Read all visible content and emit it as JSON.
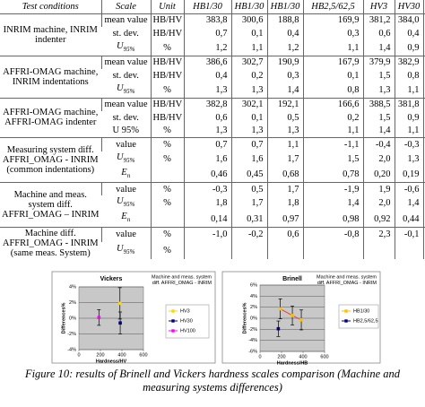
{
  "table": {
    "header": [
      "Test conditions",
      "Scale",
      "Unit",
      "HB1/30",
      "HB1/30",
      "HB1/30",
      "HB2,5/62,5",
      "HV3",
      "HV30",
      "HV100"
    ],
    "groups": [
      {
        "label": "INRIM machine,  INRIM indenter",
        "rows": [
          {
            "scale": "mean value",
            "unit": "HB/HV",
            "values": [
              "383,8",
              "300,6",
              "188,8",
              "169,9",
              "381,2",
              "384,0",
              "185,9"
            ]
          },
          {
            "scale": "st. dev.",
            "unit": "HB/HV",
            "values": [
              "0,7",
              "0,1",
              "0,4",
              "0,3",
              "0,6",
              "0,4",
              "0,2"
            ]
          },
          {
            "scale": {
              "text": "U",
              "sub": "95%"
            },
            "unit": "%",
            "values": [
              "1,2",
              "1,1",
              "1,2",
              "1,1",
              "1,4",
              "0,9",
              "0,7"
            ]
          }
        ]
      },
      {
        "label": "AFFRI-OMAG machine, INRIM indentations",
        "rows": [
          {
            "scale": "mean value",
            "unit": "HB/HV",
            "values": [
              "386,6",
              "302,7",
              "190,9",
              "167,9",
              "379,9",
              "382,9",
              "185,7"
            ]
          },
          {
            "scale": "st. dev.",
            "unit": "HB/HV",
            "values": [
              "0,4",
              "0,2",
              "0,3",
              "0,1",
              "1,5",
              "0,8",
              "0,1"
            ]
          },
          {
            "scale": {
              "text": "U",
              "sub": "95%"
            },
            "unit": "%",
            "values": [
              "1,3",
              "1,3",
              "1,4",
              "0,8",
              "1,3",
              "1,1",
              "1,1"
            ]
          }
        ]
      },
      {
        "label": "AFFRI-OMAG machine, AFFRI-OMAG indenter",
        "rows": [
          {
            "scale": "mean value",
            "unit": "HB/HV",
            "values": [
              "382,8",
              "302,1",
              "192,1",
              "166,6",
              "388,5",
              "381,8",
              "186,0"
            ]
          },
          {
            "scale": "st. dev.",
            "unit": "HB/HV",
            "values": [
              "0,6",
              "0,1",
              "0,5",
              "0,2",
              "1,5",
              "0,9",
              "0,1"
            ]
          },
          {
            "scale": "U 95%",
            "unit": "%",
            "values": [
              "1,3",
              "1,3",
              "1,3",
              "1,1",
              "1,4",
              "1,1",
              "0,7"
            ]
          }
        ]
      },
      {
        "label": "Measuring system diff. AFFRI_OMAG - INRIM (common indentations)",
        "rows": [
          {
            "scale": "value",
            "unit": "%",
            "values": [
              "0,7",
              "0,7",
              "1,1",
              "-1,1",
              "-0,4",
              "-0,3",
              "-0,1"
            ]
          },
          {
            "scale": {
              "text": "U",
              "sub": "95%"
            },
            "unit": "%",
            "values": [
              "1,6",
              "1,6",
              "1,7",
              "1,5",
              "2,0",
              "1,3",
              "0,9"
            ]
          },
          {
            "scale": {
              "text": "E",
              "sub": "n"
            },
            "unit": null,
            "values": [
              "0,46",
              "0,45",
              "0,68",
              "0,78",
              "0,20",
              "0,19",
              "0,06"
            ]
          }
        ]
      },
      {
        "label": "Machine and meas. system diff. AFFRI_OMAG – INRIM",
        "rows": [
          {
            "scale": "value",
            "unit": "%",
            "values": [
              "-0,3",
              "0,5",
              "1,7",
              "-1,9",
              "1,9",
              "-0,6",
              "0,1"
            ]
          },
          {
            "scale": {
              "text": "U",
              "sub": "95%"
            },
            "unit": "%",
            "values": [
              "1,8",
              "1,7",
              "1,8",
              "1,4",
              "2,0",
              "1,4",
              "1,0"
            ]
          },
          {
            "scale": {
              "text": "E",
              "sub": "n"
            },
            "unit": null,
            "values": [
              "0,14",
              "0,31",
              "0,97",
              "0,98",
              "0,92",
              "0,44",
              "0,06"
            ]
          }
        ]
      },
      {
        "label": "Machine diff. AFFRI_OMAG - INRIM (same meas. System)",
        "rows": [
          {
            "scale": "value",
            "unit": "%",
            "values": [
              "-1,0",
              "-0,2",
              "0,6",
              "-0,8",
              "2,3",
              "-0,1",
              "0,2"
            ]
          },
          {
            "scale": {
              "text": "U",
              "sub": "95%"
            },
            "unit": "%"
          }
        ]
      }
    ]
  },
  "figure": {
    "charts": [
      {
        "type": "scatter",
        "title": "Vickers",
        "annotation": [
          "Machine and meas. system",
          "diff. AFFRI_OMAG - INRIM"
        ],
        "x_label": "Hardness/HV",
        "y_label": "Differences%",
        "xlim": [
          0,
          600
        ],
        "xticks": [
          0,
          200,
          400,
          600
        ],
        "ylim": [
          -4,
          4
        ],
        "yticks": [
          {
            "value": -4,
            "label": "-4%"
          },
          {
            "value": -2,
            "label": "-2%"
          },
          {
            "value": 0,
            "label": "0%"
          },
          {
            "value": 2,
            "label": "2%"
          },
          {
            "value": 4,
            "label": "4%"
          }
        ],
        "grid": true,
        "series": [
          {
            "name": "HV3",
            "color": "#ffd700",
            "x": [
              381.2
            ],
            "values": [
              1.9
            ],
            "errors": [
              2.0
            ]
          },
          {
            "name": "HV30",
            "color": "#000080",
            "x": [
              384.0
            ],
            "values": [
              -0.6
            ],
            "errors": [
              1.4
            ]
          },
          {
            "name": "HV100",
            "color": "#ff00ff",
            "x": [
              185.9
            ],
            "values": [
              0.1
            ],
            "errors": [
              1.0
            ]
          }
        ]
      },
      {
        "type": "scatter",
        "title": "Brinell",
        "annotation": [
          "Machine and meas. system",
          "diff. AFFRI_OMAG - INRIM"
        ],
        "x_label": "Hardness/HB",
        "y_label": "Differences%",
        "xlim": [
          0,
          600
        ],
        "xticks": [
          0,
          200,
          400,
          600
        ],
        "ylim": [
          -6,
          6
        ],
        "yticks": [
          {
            "value": -6,
            "label": "-6%"
          },
          {
            "value": -4,
            "label": "-4%"
          },
          {
            "value": -2,
            "label": "-2%"
          },
          {
            "value": 0,
            "label": "0%"
          },
          {
            "value": 2,
            "label": "2%"
          },
          {
            "value": 4,
            "label": "4%"
          },
          {
            "value": 6,
            "label": "6%"
          }
        ],
        "grid": true,
        "series": [
          {
            "name": "HB1/30",
            "color": "#ffc000",
            "line_color": "#e8403a",
            "x": [
              383.8,
              300.6,
              188.8
            ],
            "values": [
              -0.3,
              0.5,
              1.7
            ],
            "errors": [
              1.8,
              1.7,
              1.8
            ]
          },
          {
            "name": "HB2,5/62,5",
            "color": "#000080",
            "x": [
              169.9
            ],
            "values": [
              -1.9
            ],
            "errors": [
              1.4
            ]
          }
        ]
      }
    ],
    "caption": "Figure 10: results of Brinell and Vickers hardness scales comparison (Machine and measuring systems differences)"
  }
}
